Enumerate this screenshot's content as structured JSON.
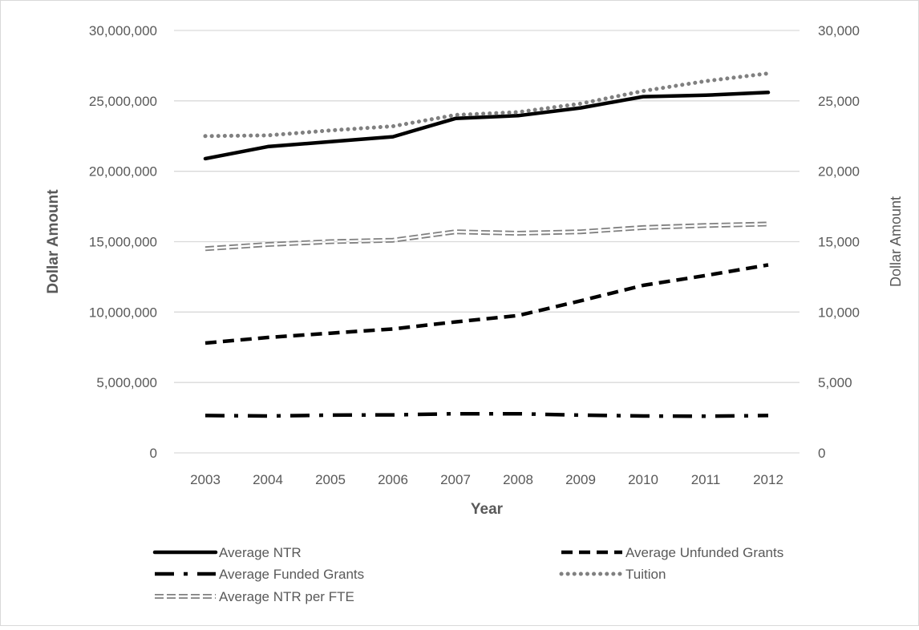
{
  "chart_data": {
    "type": "line",
    "categories": [
      "2003",
      "2004",
      "2005",
      "2006",
      "2007",
      "2008",
      "2009",
      "2010",
      "2011",
      "2012"
    ],
    "xlabel": "Year",
    "ylabel": "Dollar Amount",
    "ylabel_right": "Dollar Amount",
    "ylim": [
      0,
      30000000
    ],
    "ylim_right": [
      0,
      30000
    ],
    "y_ticks": [
      "0",
      "5,000,000",
      "10,000,000",
      "15,000,000",
      "20,000,000",
      "25,000,000",
      "30,000,000"
    ],
    "y_ticks_right": [
      "0",
      "5,000",
      "10,000",
      "15,000",
      "20,000",
      "25,000",
      "30,000"
    ],
    "grid": true,
    "legend_position": "bottom",
    "series": [
      {
        "name": "Average NTR",
        "axis": "left",
        "style": "solid",
        "color": "#000000",
        "values": [
          20900000,
          21750000,
          22100000,
          22450000,
          23750000,
          23950000,
          24500000,
          25300000,
          25400000,
          25600000
        ]
      },
      {
        "name": "Average Unfunded Grants",
        "axis": "left",
        "style": "dash",
        "color": "#000000",
        "values": [
          7800000,
          8200000,
          8500000,
          8800000,
          9300000,
          9750000,
          10800000,
          11900000,
          12600000,
          13350000
        ]
      },
      {
        "name": "Average Funded Grants",
        "axis": "left",
        "style": "dash-dot",
        "color": "#000000",
        "values": [
          2650000,
          2620000,
          2680000,
          2700000,
          2780000,
          2780000,
          2680000,
          2620000,
          2600000,
          2650000
        ]
      },
      {
        "name": "Tuition",
        "axis": "left",
        "style": "dot",
        "color": "#808080",
        "values": [
          22500000,
          22550000,
          22900000,
          23200000,
          24000000,
          24200000,
          24800000,
          25700000,
          26400000,
          26950000
        ]
      },
      {
        "name": "Average NTR per FTE",
        "axis": "right",
        "style": "double",
        "color": "#808080",
        "values": [
          14500,
          14800,
          15000,
          15100,
          15700,
          15600,
          15700,
          16000,
          16150,
          16250
        ]
      }
    ]
  }
}
